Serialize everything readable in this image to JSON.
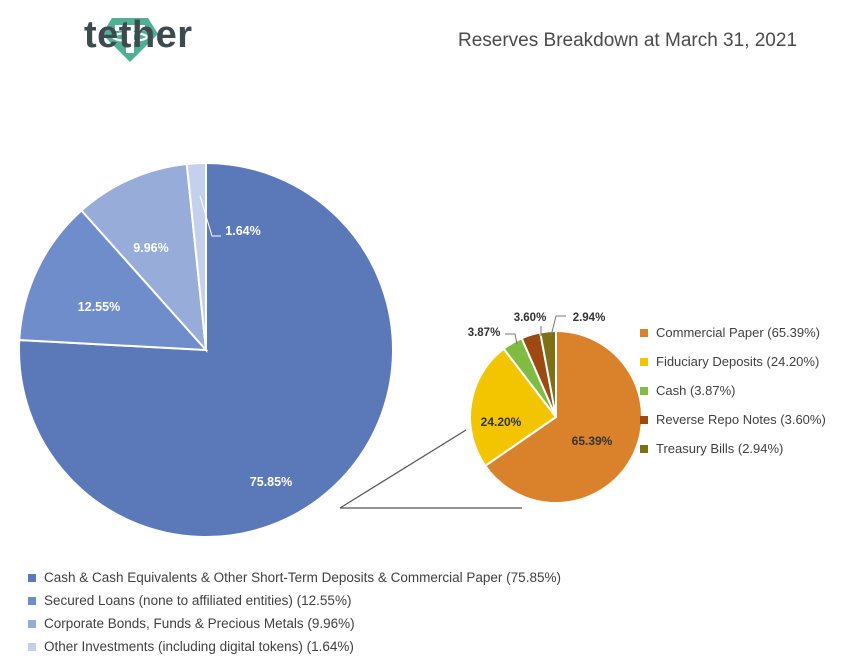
{
  "header": {
    "brand": "tether",
    "title": "Reserves Breakdown at March 31, 2021"
  },
  "colors": {
    "brand_green": "#50af95",
    "brand_text": "#3d4a4f"
  },
  "chart_data": [
    {
      "type": "pie",
      "title": "Reserves Breakdown at March 31, 2021",
      "slices": [
        {
          "name": "Cash & Cash Equivalents & Other Short-Term Deposits & Commercial Paper (75.85%)",
          "value": 75.85,
          "label": "75.85%",
          "color": "#5b79b8"
        },
        {
          "name": "Secured Loans (none to affiliated entities) (12.55%)",
          "value": 12.55,
          "label": "12.55%",
          "color": "#6f8dcb"
        },
        {
          "name": "Corporate Bonds, Funds & Precious Metals (9.96%)",
          "value": 9.96,
          "label": "9.96%",
          "color": "#98acd9"
        },
        {
          "name": "Other Investments (including digital tokens) (1.64%)",
          "value": 1.64,
          "label": "1.64%",
          "color": "#c5d1ec"
        }
      ],
      "legend_position": "bottom"
    },
    {
      "type": "pie",
      "title": "",
      "slices": [
        {
          "name": "Commercial Paper (65.39%)",
          "value": 65.39,
          "label": "65.39%",
          "color": "#d9822b"
        },
        {
          "name": "Fiduciary Deposits (24.20%)",
          "value": 24.2,
          "label": "24.20%",
          "color": "#f2c500"
        },
        {
          "name": "Cash (3.87%)",
          "value": 3.87,
          "label": "3.87%",
          "color": "#7fbc41"
        },
        {
          "name": "Reverse Repo Notes (3.60%)",
          "value": 3.6,
          "label": "3.60%",
          "color": "#9c4a12"
        },
        {
          "name": "Treasury Bills (2.94%)",
          "value": 2.94,
          "label": "2.94%",
          "color": "#7d7016"
        }
      ],
      "legend_position": "right"
    }
  ]
}
